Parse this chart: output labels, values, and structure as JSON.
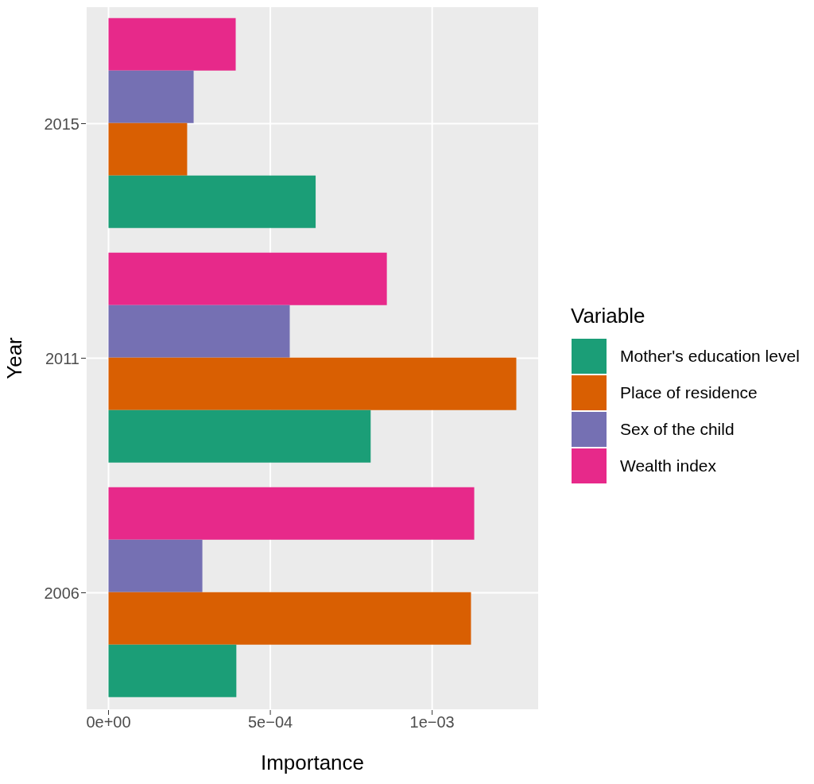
{
  "chart_data": {
    "type": "bar",
    "orientation": "horizontal",
    "xlabel": "Importance",
    "ylabel": "Year",
    "legend_title": "Variable",
    "categories": [
      "2015",
      "2011",
      "2006"
    ],
    "series": [
      {
        "name": "Mother's education level",
        "color": "#1b9e77",
        "values": [
          0.00064,
          0.00081,
          0.000395
        ]
      },
      {
        "name": "Place of residence",
        "color": "#d95f02",
        "values": [
          0.000243,
          0.00126,
          0.00112
        ]
      },
      {
        "name": "Sex of the child",
        "color": "#7570b3",
        "values": [
          0.000263,
          0.00056,
          0.00029
        ]
      },
      {
        "name": "Wealth index",
        "color": "#e7298a",
        "values": [
          0.000393,
          0.00086,
          0.00113
        ]
      }
    ],
    "xlim": [
      -7e-05,
      0.00133
    ],
    "xticks": [
      {
        "value": 0,
        "label": "0e+00"
      },
      {
        "value": 0.0005,
        "label": "5e−04"
      },
      {
        "value": 0.001,
        "label": "1e−03"
      }
    ],
    "grid": true,
    "legend": "right"
  }
}
